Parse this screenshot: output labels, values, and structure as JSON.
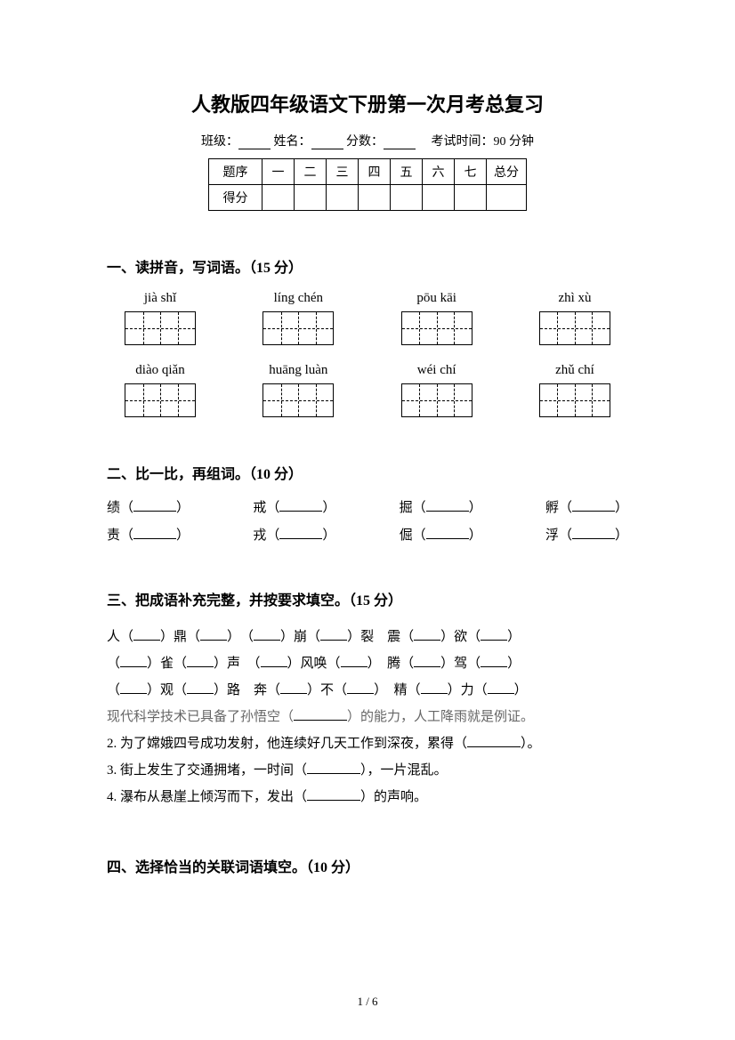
{
  "title": "人教版四年级语文下册第一次月考总复习",
  "info": {
    "class_label": "班级：",
    "name_label": "姓名：",
    "score_label": "分数：",
    "exam_time": "考试时间：90 分钟"
  },
  "score_table": {
    "header": [
      "题序",
      "一",
      "二",
      "三",
      "四",
      "五",
      "六",
      "七",
      "总分"
    ],
    "row_label": "得分"
  },
  "section1": {
    "heading": "一、读拼音，写词语。（15 分）",
    "pinyin_row1": [
      "jià shǐ",
      "líng chén",
      "pōu kāi",
      "zhì xù"
    ],
    "pinyin_row2": [
      "diào qiǎn",
      "huāng luàn",
      "wéi chí",
      "zhǔ chí"
    ]
  },
  "section2": {
    "heading": "二、比一比，再组词。（10 分）",
    "row1": [
      {
        "char": "绩",
        "open": "（",
        "close": "）"
      },
      {
        "char": "戒",
        "open": "（",
        "close": "）"
      },
      {
        "char": "掘",
        "open": "（",
        "close": "）"
      },
      {
        "char": "孵",
        "open": "（",
        "close": "）"
      }
    ],
    "row2": [
      {
        "char": "责",
        "open": "（",
        "close": "）"
      },
      {
        "char": "戎",
        "open": "（",
        "close": "）"
      },
      {
        "char": "倔",
        "open": "（",
        "close": "）"
      },
      {
        "char": "浮",
        "open": "（",
        "close": "）"
      }
    ]
  },
  "section3": {
    "heading": "三、把成语补充完整，并按要求填空。（15 分）",
    "line1_a": "人（",
    "line1_b": "）鼎（",
    "line1_c": "）　（",
    "line1_d": "）崩（",
    "line1_e": "）裂　震（",
    "line1_f": "）欲（",
    "line1_g": "）",
    "line2_a": "（",
    "line2_b": "）雀（",
    "line2_c": "）声　（",
    "line2_d": "）风唤（",
    "line2_e": "）　腾（",
    "line2_f": "）驾（",
    "line2_g": "）",
    "line3_a": "（",
    "line3_b": "）观（",
    "line3_c": "）路　奔（",
    "line3_d": "）不（",
    "line3_e": "）　精（",
    "line3_f": "）力（",
    "line3_g": "）",
    "line4_a": "现代科学技术已具备了孙悟空（",
    "line4_b": "）的能力，人工降雨就是例证。",
    "line5_a": "2. 为了嫦娥四号成功发射，他连续好几天工作到深夜，累得（",
    "line5_b": "）。",
    "line6_a": "3. 街上发生了交通拥堵，一时间（",
    "line6_b": "），一片混乱。",
    "line7_a": "4. 瀑布从悬崖上倾泻而下，发出（",
    "line7_b": "）的声响。"
  },
  "section4": {
    "heading": "四、选择恰当的关联词语填空。（10 分）"
  },
  "footer": "1 / 6"
}
